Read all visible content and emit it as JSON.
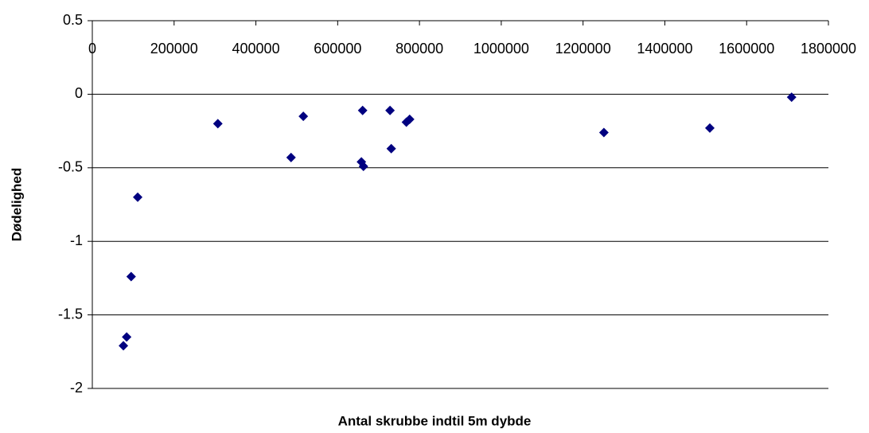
{
  "chart_data": {
    "type": "scatter",
    "xlabel": "Antal skrubbe indtil 5m dybde",
    "ylabel": "Dødelighed",
    "x": [
      76000,
      84000,
      95000,
      111000,
      307000,
      486000,
      516000,
      658000,
      661000,
      663000,
      728000,
      731000,
      768000,
      776000,
      1251000,
      1510000,
      1710000
    ],
    "values": [
      -1.71,
      -1.65,
      -1.24,
      -0.7,
      -0.2,
      -0.43,
      -0.15,
      -0.46,
      -0.11,
      -0.49,
      -0.11,
      -0.37,
      -0.19,
      -0.17,
      -0.26,
      -0.23,
      -0.02
    ],
    "color": "#000080",
    "xlim": [
      0,
      1800000
    ],
    "xticks": [
      0,
      200000,
      400000,
      600000,
      800000,
      1000000,
      1200000,
      1400000,
      1600000,
      1800000
    ],
    "ylim": [
      -2,
      0.5
    ],
    "yticks": [
      0.5,
      0,
      -0.5,
      -1,
      -1.5,
      -2
    ],
    "grid": true
  }
}
